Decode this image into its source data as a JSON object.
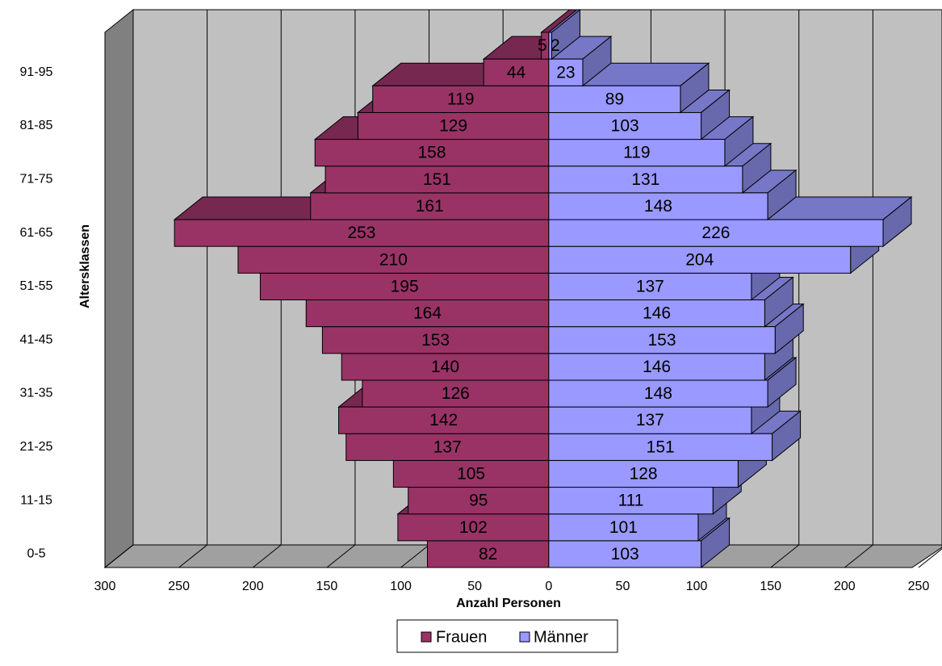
{
  "chart_data": {
    "type": "pyramid",
    "x_label": "Anzahl Personen",
    "y_label": "Altersklassen",
    "categories": [
      "0-5",
      null,
      "11-15",
      null,
      "21-25",
      null,
      "31-35",
      null,
      "41-45",
      null,
      "51-55",
      null,
      "61-65",
      null,
      "71-75",
      null,
      "81-85",
      null,
      "91-95",
      null
    ],
    "series": [
      {
        "name": "Frauen",
        "color": "#993366",
        "values": [
          82,
          102,
          95,
          105,
          137,
          142,
          126,
          140,
          153,
          164,
          195,
          210,
          253,
          161,
          151,
          158,
          129,
          119,
          44,
          5
        ]
      },
      {
        "name": "Männer",
        "color": "#9999ff",
        "values": [
          103,
          101,
          111,
          128,
          151,
          137,
          148,
          146,
          153,
          146,
          137,
          204,
          226,
          148,
          131,
          119,
          103,
          89,
          23,
          2
        ]
      }
    ],
    "xlim": [
      -300,
      250
    ],
    "xticks": [
      {
        "value": -300,
        "label": "300"
      },
      {
        "value": -250,
        "label": "250"
      },
      {
        "value": -200,
        "label": "200"
      },
      {
        "value": -150,
        "label": "150"
      },
      {
        "value": -100,
        "label": "100"
      },
      {
        "value": -50,
        "label": "50"
      },
      0,
      50,
      100,
      150,
      200,
      250
    ],
    "grid": true,
    "legend": "bottom"
  }
}
